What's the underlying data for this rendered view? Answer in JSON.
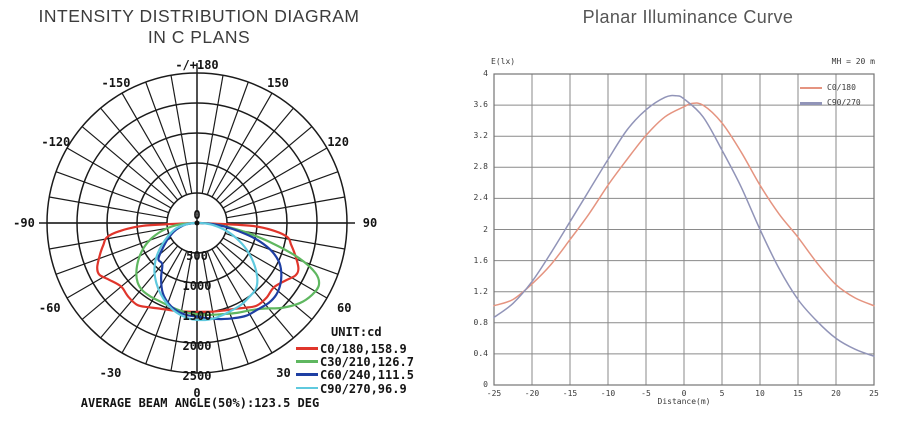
{
  "chart_data": [
    {
      "id": "intensity_polar",
      "type": "polar-line",
      "title": [
        "INTENSITY DISTRIBUTION DIAGRAM",
        "IN C PLANS"
      ],
      "unit_label": "UNIT:cd",
      "radial_ticks": [
        0,
        500,
        1000,
        1500,
        2000,
        2500
      ],
      "radial_max": 2500,
      "spoke_step_deg": 10,
      "angle_labels": [
        {
          "deg": 180,
          "label": "-/+180"
        },
        {
          "deg": -150,
          "label": "-150"
        },
        {
          "deg": 150,
          "label": "150"
        },
        {
          "deg": -120,
          "label": "-120"
        },
        {
          "deg": 120,
          "label": "120"
        },
        {
          "deg": -90,
          "label": "-90"
        },
        {
          "deg": 90,
          "label": "90"
        },
        {
          "deg": -60,
          "label": "-60"
        },
        {
          "deg": 60,
          "label": "60"
        },
        {
          "deg": -30,
          "label": "-30"
        },
        {
          "deg": 30,
          "label": "30"
        },
        {
          "deg": 0,
          "label": "0"
        }
      ],
      "footer": "AVERAGE BEAM ANGLE(50%):123.5 DEG",
      "average_beam_angle_deg": 123.5,
      "series": [
        {
          "name": "C0/180,158.9",
          "plane": "C0/180",
          "beam_angle_deg": 158.9,
          "color": "#e0352b",
          "points": [
            [
              -90,
              60
            ],
            [
              -87,
              900
            ],
            [
              -84,
              1300
            ],
            [
              -81,
              1520
            ],
            [
              -77,
              1600
            ],
            [
              -72,
              1700
            ],
            [
              -66,
              1820
            ],
            [
              -62,
              1840
            ],
            [
              -57,
              1740
            ],
            [
              -50,
              1650
            ],
            [
              -43,
              1680
            ],
            [
              -36,
              1690
            ],
            [
              -30,
              1620
            ],
            [
              -24,
              1560
            ],
            [
              -17,
              1520
            ],
            [
              -10,
              1495
            ],
            [
              0,
              1480
            ],
            [
              10,
              1500
            ],
            [
              17,
              1525
            ],
            [
              24,
              1565
            ],
            [
              30,
              1630
            ],
            [
              36,
              1700
            ],
            [
              43,
              1700
            ],
            [
              50,
              1670
            ],
            [
              57,
              1760
            ],
            [
              62,
              1860
            ],
            [
              66,
              1850
            ],
            [
              72,
              1720
            ],
            [
              77,
              1610
            ],
            [
              81,
              1530
            ],
            [
              84,
              1310
            ],
            [
              87,
              920
            ],
            [
              90,
              60
            ]
          ]
        },
        {
          "name": "C30/210,126.7",
          "plane": "C30/210",
          "beam_angle_deg": 126.7,
          "color": "#5fb760",
          "points": [
            [
              -90,
              40
            ],
            [
              -85,
              300
            ],
            [
              -79,
              540
            ],
            [
              -72,
              780
            ],
            [
              -65,
              980
            ],
            [
              -58,
              1150
            ],
            [
              -51,
              1300
            ],
            [
              -45,
              1400
            ],
            [
              -39,
              1445
            ],
            [
              -32,
              1450
            ],
            [
              -25,
              1445
            ],
            [
              -18,
              1460
            ],
            [
              -10,
              1490
            ],
            [
              0,
              1520
            ],
            [
              8,
              1545
            ],
            [
              16,
              1580
            ],
            [
              24,
              1640
            ],
            [
              31,
              1700
            ],
            [
              38,
              1810
            ],
            [
              45,
              2000
            ],
            [
              52,
              2170
            ],
            [
              58,
              2260
            ],
            [
              63,
              2280
            ],
            [
              67,
              2150
            ],
            [
              71,
              1800
            ],
            [
              75,
              1300
            ],
            [
              79,
              850
            ],
            [
              83,
              500
            ],
            [
              87,
              220
            ],
            [
              90,
              40
            ]
          ]
        },
        {
          "name": "C60/240,111.5",
          "plane": "C60/240",
          "beam_angle_deg": 111.5,
          "color": "#1e3fa3",
          "points": [
            [
              -90,
              30
            ],
            [
              -83,
              180
            ],
            [
              -76,
              300
            ],
            [
              -69,
              420
            ],
            [
              -61,
              560
            ],
            [
              -54,
              700
            ],
            [
              -47,
              880
            ],
            [
              -40,
              900
            ],
            [
              -33,
              1100
            ],
            [
              -26,
              1300
            ],
            [
              -19,
              1430
            ],
            [
              -12,
              1510
            ],
            [
              -6,
              1545
            ],
            [
              0,
              1560
            ],
            [
              7,
              1600
            ],
            [
              14,
              1650
            ],
            [
              21,
              1700
            ],
            [
              28,
              1750
            ],
            [
              35,
              1760
            ],
            [
              42,
              1790
            ],
            [
              48,
              1780
            ],
            [
              54,
              1720
            ],
            [
              60,
              1620
            ],
            [
              65,
              1500
            ],
            [
              70,
              1300
            ],
            [
              75,
              1000
            ],
            [
              79,
              700
            ],
            [
              83,
              450
            ],
            [
              87,
              200
            ],
            [
              90,
              30
            ]
          ]
        },
        {
          "name": "C90/270,96.9",
          "plane": "C90/270",
          "beam_angle_deg": 96.9,
          "color": "#5fc9de",
          "points": [
            [
              -90,
              30
            ],
            [
              -84,
              160
            ],
            [
              -77,
              330
            ],
            [
              -70,
              450
            ],
            [
              -62,
              600
            ],
            [
              -55,
              760
            ],
            [
              -48,
              930
            ],
            [
              -41,
              1080
            ],
            [
              -34,
              1210
            ],
            [
              -27,
              1330
            ],
            [
              -20,
              1440
            ],
            [
              -13,
              1530
            ],
            [
              -6,
              1590
            ],
            [
              0,
              1615
            ],
            [
              7,
              1620
            ],
            [
              14,
              1600
            ],
            [
              21,
              1570
            ],
            [
              28,
              1550
            ],
            [
              35,
              1510
            ],
            [
              42,
              1470
            ],
            [
              48,
              1350
            ],
            [
              55,
              1150
            ],
            [
              62,
              930
            ],
            [
              69,
              700
            ],
            [
              76,
              480
            ],
            [
              82,
              290
            ],
            [
              87,
              130
            ],
            [
              90,
              30
            ]
          ]
        }
      ]
    },
    {
      "id": "planar_illuminance",
      "type": "line",
      "title": "Planar Illuminance Curve",
      "ylabel": "E(lx)",
      "xlabel": "Distance(m)",
      "corner_note": "MH = 20 m",
      "mounting_height_m": 20,
      "xlim": [
        -25,
        25
      ],
      "ylim": [
        0,
        4
      ],
      "xticks": [
        "-25",
        "-20",
        "-15",
        "-10",
        "-5",
        "0",
        "5",
        "10",
        "15",
        "20",
        "25"
      ],
      "yticks": [
        "0",
        "0.4",
        "0.8",
        "1.2",
        "1.6",
        "2",
        "2.4",
        "2.8",
        "3.2",
        "3.6",
        "4"
      ],
      "grid": true,
      "legend_position": "top-right-inside",
      "series": [
        {
          "name": "C0/180",
          "color": "#e59480",
          "legend_weight": 2,
          "points": [
            [
              -25,
              1.02
            ],
            [
              -22.5,
              1.1
            ],
            [
              -20,
              1.3
            ],
            [
              -17.5,
              1.55
            ],
            [
              -15,
              1.87
            ],
            [
              -12.5,
              2.2
            ],
            [
              -10,
              2.57
            ],
            [
              -7.5,
              2.9
            ],
            [
              -5,
              3.21
            ],
            [
              -2.5,
              3.45
            ],
            [
              0,
              3.58
            ],
            [
              1,
              3.62
            ],
            [
              2.5,
              3.6
            ],
            [
              5,
              3.37
            ],
            [
              7.5,
              3.0
            ],
            [
              10,
              2.57
            ],
            [
              12.5,
              2.2
            ],
            [
              15,
              1.9
            ],
            [
              17.5,
              1.57
            ],
            [
              20,
              1.29
            ],
            [
              22.5,
              1.12
            ],
            [
              25,
              1.02
            ]
          ]
        },
        {
          "name": "C90/270",
          "color": "#9194b8",
          "legend_weight": 3,
          "points": [
            [
              -25,
              0.87
            ],
            [
              -22.5,
              1.05
            ],
            [
              -20,
              1.33
            ],
            [
              -17.5,
              1.7
            ],
            [
              -15,
              2.1
            ],
            [
              -12.5,
              2.5
            ],
            [
              -10,
              2.9
            ],
            [
              -7.5,
              3.28
            ],
            [
              -5,
              3.54
            ],
            [
              -2.5,
              3.7
            ],
            [
              -1,
              3.72
            ],
            [
              0,
              3.68
            ],
            [
              2.5,
              3.45
            ],
            [
              5,
              3.02
            ],
            [
              7.5,
              2.55
            ],
            [
              10,
              2.0
            ],
            [
              12.5,
              1.5
            ],
            [
              15,
              1.1
            ],
            [
              17.5,
              0.82
            ],
            [
              20,
              0.6
            ],
            [
              22.5,
              0.46
            ],
            [
              25,
              0.37
            ]
          ]
        }
      ]
    }
  ]
}
